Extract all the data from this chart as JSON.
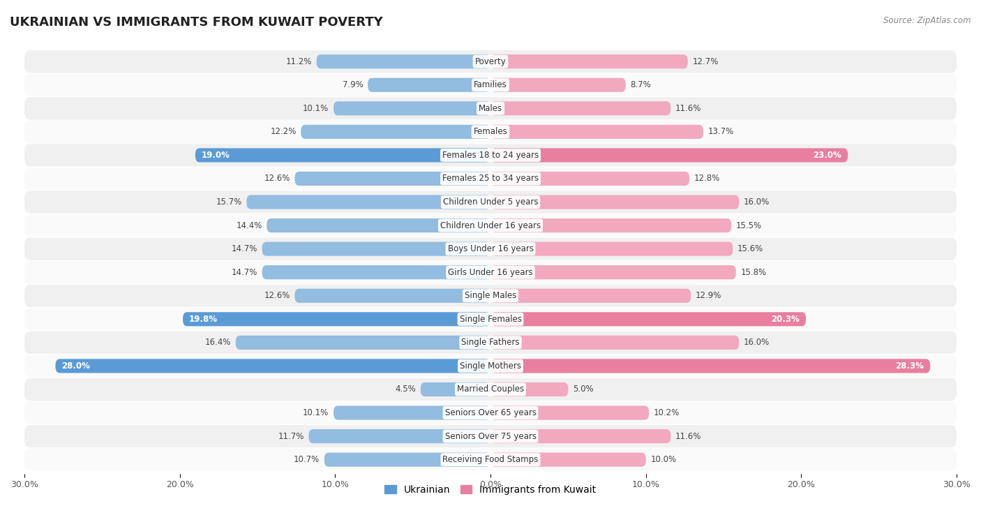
{
  "title": "UKRAINIAN VS IMMIGRANTS FROM KUWAIT POVERTY",
  "source": "Source: ZipAtlas.com",
  "categories": [
    "Poverty",
    "Families",
    "Males",
    "Females",
    "Females 18 to 24 years",
    "Females 25 to 34 years",
    "Children Under 5 years",
    "Children Under 16 years",
    "Boys Under 16 years",
    "Girls Under 16 years",
    "Single Males",
    "Single Females",
    "Single Fathers",
    "Single Mothers",
    "Married Couples",
    "Seniors Over 65 years",
    "Seniors Over 75 years",
    "Receiving Food Stamps"
  ],
  "ukrainian": [
    11.2,
    7.9,
    10.1,
    12.2,
    19.0,
    12.6,
    15.7,
    14.4,
    14.7,
    14.7,
    12.6,
    19.8,
    16.4,
    28.0,
    4.5,
    10.1,
    11.7,
    10.7
  ],
  "kuwait": [
    12.7,
    8.7,
    11.6,
    13.7,
    23.0,
    12.8,
    16.0,
    15.5,
    15.6,
    15.8,
    12.9,
    20.3,
    16.0,
    28.3,
    5.0,
    10.2,
    11.6,
    10.0
  ],
  "ukrainian_color": "#92bce0",
  "kuwait_color": "#f2a8bf",
  "ukrainian_highlight_color": "#5b9bd5",
  "kuwait_highlight_color": "#e87fa0",
  "highlight_rows": [
    4,
    11,
    13
  ],
  "background_row_odd": "#f0f0f0",
  "background_row_even": "#fafafa",
  "background_color": "#ffffff",
  "axis_max": 30.0,
  "bar_height": 0.6,
  "label_fontsize": 8.5,
  "category_fontsize": 8.5,
  "title_fontsize": 13,
  "tick_positions": [
    -30,
    -20,
    -10,
    0,
    10,
    20,
    30
  ],
  "tick_labels": [
    "30.0%",
    "20.0%",
    "10.0%",
    "0.0%",
    "10.0%",
    "20.0%",
    "30.0%"
  ]
}
